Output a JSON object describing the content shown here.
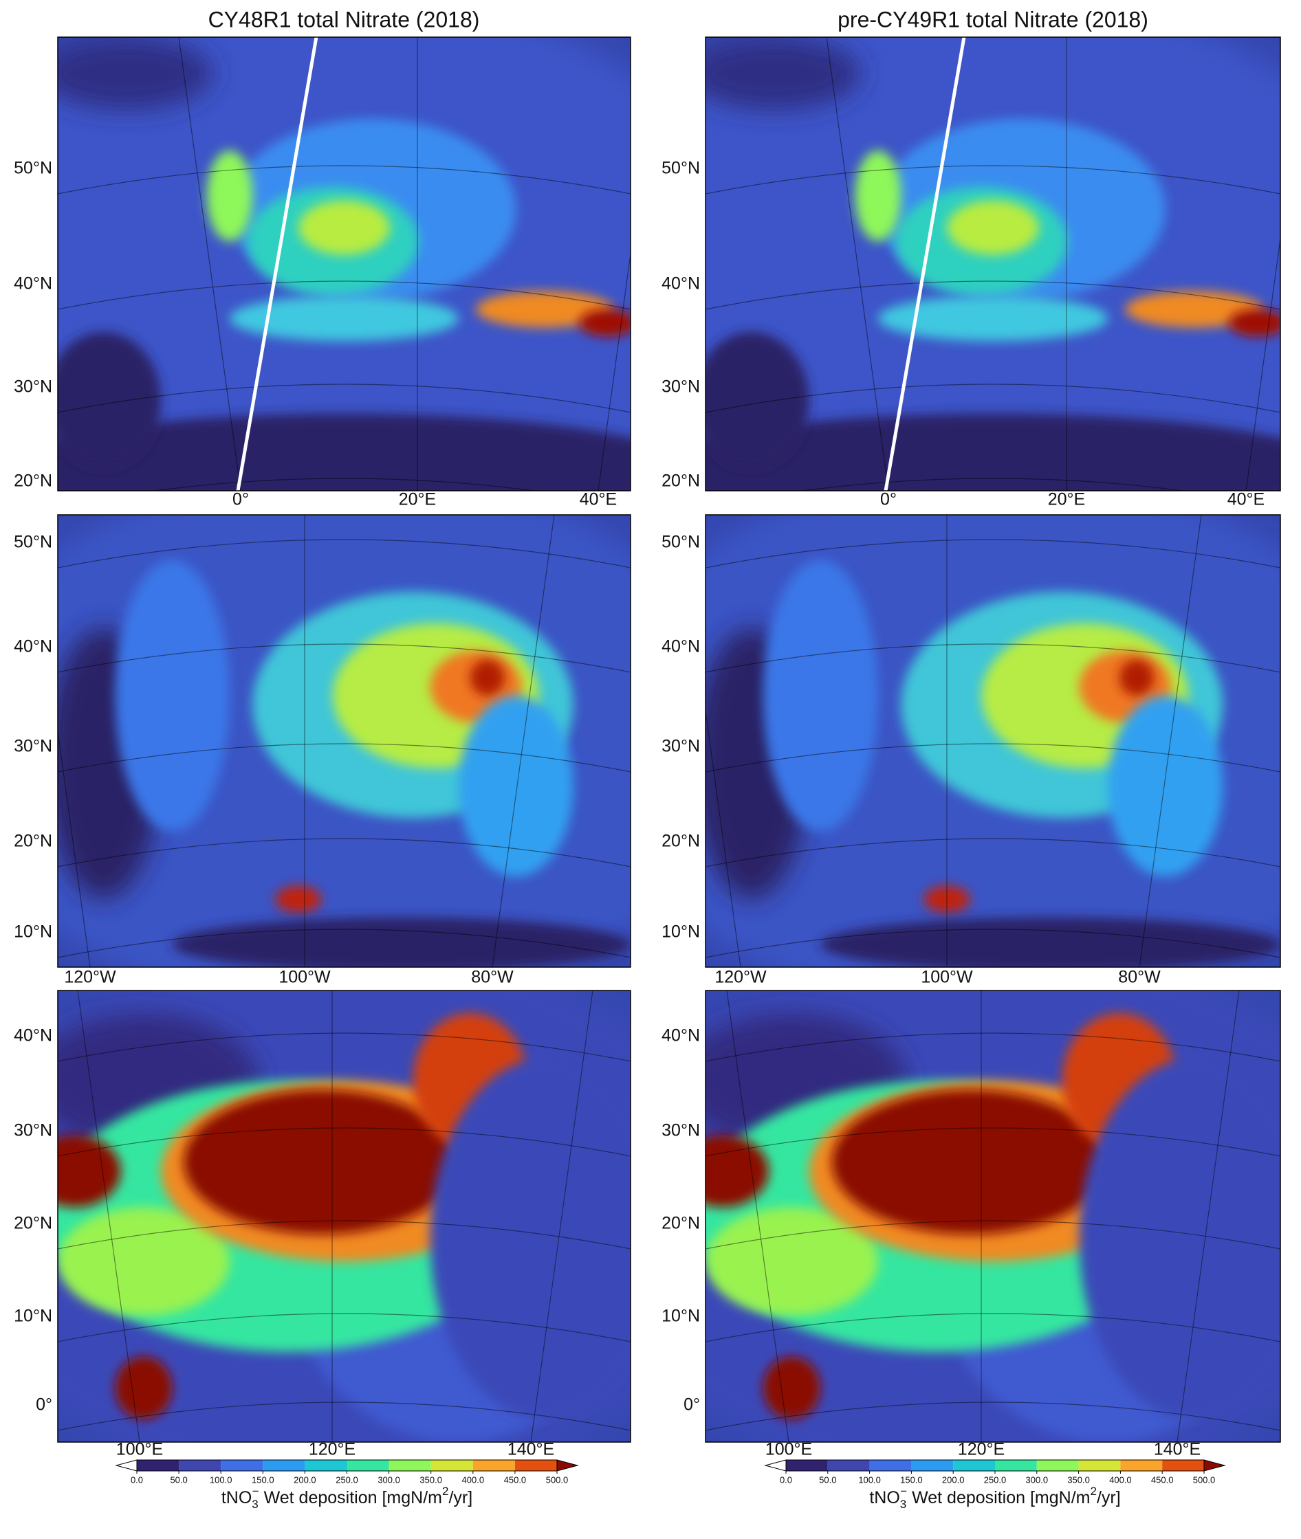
{
  "titles": [
    "CY48R1 total Nitrate (2018)",
    "pre-CY49R1 total Nitrate (2018)"
  ],
  "rows": [
    {
      "lat_labels": [
        "50°N",
        "40°N",
        "30°N",
        "20°N"
      ],
      "lon_labels": [
        "0°",
        "20°E",
        "40°E"
      ]
    },
    {
      "lat_labels": [
        "50°N",
        "40°N",
        "30°N",
        "20°N",
        "10°N"
      ],
      "lon_labels": [
        "120°W",
        "100°W",
        "80°W"
      ]
    },
    {
      "lat_labels": [
        "40°N",
        "30°N",
        "20°N",
        "10°N",
        "0°"
      ],
      "lon_labels": [
        "100°E",
        "120°E",
        "140°E"
      ]
    }
  ],
  "colorbar": {
    "ticks": [
      {
        "value": 0,
        "label": "0.0"
      },
      {
        "value": 50,
        "label": "50.0"
      },
      {
        "value": 100,
        "label": "100.0"
      },
      {
        "value": 150,
        "label": "150.0"
      },
      {
        "value": 200,
        "label": "200.0"
      },
      {
        "value": 250,
        "label": "250.0"
      },
      {
        "value": 300,
        "label": "300.0"
      },
      {
        "value": 350,
        "label": "350.0"
      },
      {
        "value": 400,
        "label": "400.0"
      },
      {
        "value": 450,
        "label": "450.0"
      },
      {
        "value": 500,
        "label": "500.0"
      }
    ],
    "lim": [
      0,
      500
    ],
    "colors": [
      "#30226e",
      "#3f46b0",
      "#3f6ee6",
      "#2c9cf2",
      "#1dc7d4",
      "#34e6a0",
      "#8ef75a",
      "#d6e635",
      "#fba42a",
      "#e4500d"
    ],
    "over_color": "#8a0a02",
    "under_color": "#ffffff",
    "label_parts": [
      "tNO",
      "3",
      "−",
      " Wet deposition [mgN/m",
      "2",
      "/yr]"
    ]
  }
}
